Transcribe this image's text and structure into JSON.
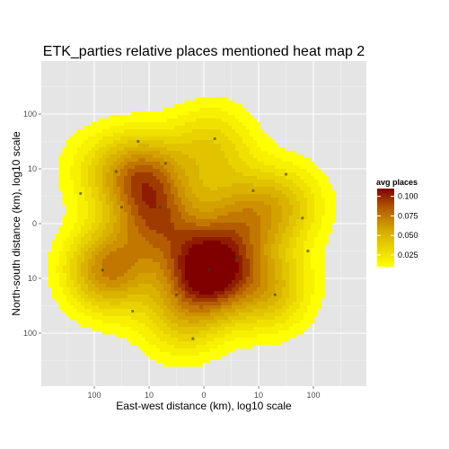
{
  "chart_data": {
    "type": "heatmap",
    "title": "ETK_parties relative places mentioned heat map 2",
    "xlabel": "East-west distance (km), log10 scale",
    "ylabel": "North-south distance (km), log10 scale",
    "x_ticks": [
      "100",
      "10",
      "0",
      "10",
      "100"
    ],
    "y_ticks": [
      "100",
      "10",
      "0",
      "10",
      "100"
    ],
    "grid": true,
    "legend": {
      "title": "avg places",
      "position": "right",
      "labels": [
        "0.100",
        "0.075",
        "0.050",
        "0.025"
      ],
      "values": [
        0.1,
        0.075,
        0.05,
        0.025
      ],
      "range": [
        0.01,
        0.11
      ],
      "colors": {
        "low": "#ffff00",
        "mid": "#cc9900",
        "high": "#800000"
      }
    },
    "density_peaks": [
      {
        "x": 0.1,
        "y": -0.85,
        "value": 0.11
      },
      {
        "x": -1.1,
        "y": 0.85,
        "value": 0.072
      },
      {
        "x": -1.75,
        "y": -0.85,
        "value": 0.075
      },
      {
        "x": -0.8,
        "y": 0.0,
        "value": 0.062
      },
      {
        "x": 0.7,
        "y": 0.1,
        "value": 0.052
      },
      {
        "x": 1.5,
        "y": 0.35,
        "value": 0.038
      },
      {
        "x": 1.2,
        "y": -1.2,
        "value": 0.05
      },
      {
        "x": 0.15,
        "y": 1.4,
        "value": 0.04
      },
      {
        "x": -0.4,
        "y": -1.7,
        "value": 0.04
      },
      {
        "x": -1.9,
        "y": 1.0,
        "value": 0.022
      }
    ],
    "points": [
      {
        "x": -1.2,
        "y": 1.5
      },
      {
        "x": -0.7,
        "y": 1.1
      },
      {
        "x": 0.2,
        "y": 1.55
      },
      {
        "x": -1.6,
        "y": 0.95
      },
      {
        "x": 1.5,
        "y": 0.9
      },
      {
        "x": -2.25,
        "y": 0.55
      },
      {
        "x": -1.85,
        "y": -0.85
      },
      {
        "x": 0.1,
        "y": -0.85
      },
      {
        "x": -1.3,
        "y": -1.6
      },
      {
        "x": -0.8,
        "y": 0.3
      },
      {
        "x": 1.8,
        "y": 0.1
      },
      {
        "x": -0.2,
        "y": -2.1
      },
      {
        "x": 1.3,
        "y": -1.3
      },
      {
        "x": 0.6,
        "y": -0.6
      },
      {
        "x": -0.5,
        "y": -1.3
      },
      {
        "x": 0.9,
        "y": 0.6
      },
      {
        "x": -1.5,
        "y": 0.3
      },
      {
        "x": 1.9,
        "y": -0.5
      }
    ]
  }
}
